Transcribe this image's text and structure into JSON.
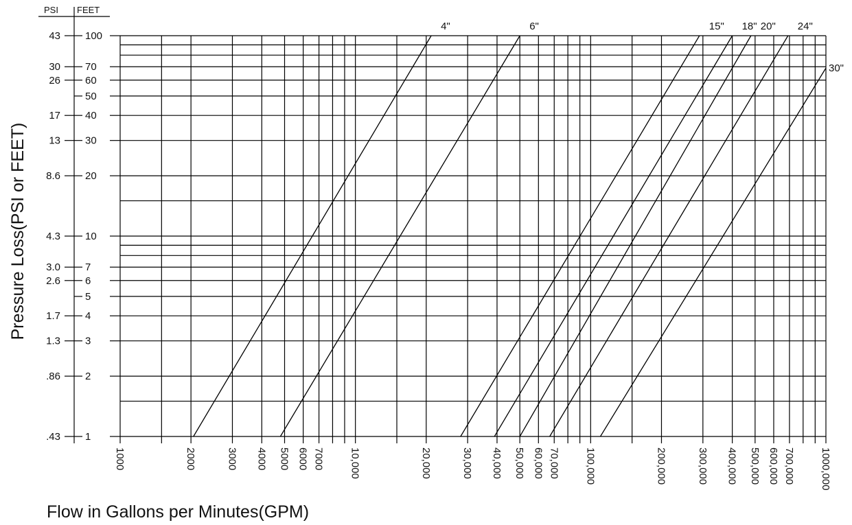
{
  "chart_data": {
    "type": "line",
    "title": "",
    "xlabel": "Flow in Gallons per Minutes(GPM)",
    "ylabel": "Pressure Loss(PSI or FEET)",
    "x_scale": "log",
    "y_scale": "log",
    "xlim": [
      1000,
      1000000
    ],
    "ylim": [
      1,
      100
    ],
    "x_ticks": [
      1000,
      2000,
      3000,
      4000,
      5000,
      6000,
      7000,
      10000,
      20000,
      30000,
      40000,
      50000,
      60000,
      70000,
      100000,
      200000,
      300000,
      400000,
      500000,
      600000,
      700000,
      1000000
    ],
    "x_tick_labels": [
      "1000",
      "2000",
      "3000",
      "4000",
      "5000",
      "6000",
      "7000",
      "10,000",
      "20,000",
      "30,000",
      "40,000",
      "50,000",
      "60,000",
      "70,000",
      "100,000",
      "200,000",
      "300,000",
      "400,000",
      "500,000",
      "600,000",
      "700,000",
      "1000,000"
    ],
    "x_grid": [
      1000,
      1500,
      2000,
      3000,
      4000,
      5000,
      6000,
      7000,
      8000,
      9000,
      10000,
      15000,
      20000,
      30000,
      40000,
      50000,
      60000,
      70000,
      80000,
      90000,
      100000,
      150000,
      200000,
      300000,
      400000,
      500000,
      600000,
      700000,
      800000,
      900000,
      1000000
    ],
    "y_grid": [
      1,
      1.5,
      2,
      3,
      4,
      5,
      6,
      7,
      8,
      9,
      10,
      15,
      20,
      30,
      40,
      50,
      60,
      70,
      80,
      90,
      100
    ],
    "y_axis_headers": {
      "psi": "PSI",
      "feet": "FEET"
    },
    "y_ticks_feet": [
      {
        "value": 100,
        "label": "100"
      },
      {
        "value": 70,
        "label": "70"
      },
      {
        "value": 60,
        "label": "60"
      },
      {
        "value": 50,
        "label": "50"
      },
      {
        "value": 40,
        "label": "40"
      },
      {
        "value": 30,
        "label": "30"
      },
      {
        "value": 20,
        "label": "20"
      },
      {
        "value": 10,
        "label": "10"
      },
      {
        "value": 7,
        "label": "7"
      },
      {
        "value": 6,
        "label": "6"
      },
      {
        "value": 5,
        "label": "5"
      },
      {
        "value": 4,
        "label": "4"
      },
      {
        "value": 3,
        "label": "3"
      },
      {
        "value": 2,
        "label": "2"
      },
      {
        "value": 1,
        "label": "1"
      }
    ],
    "y_ticks_psi": [
      {
        "value": 100,
        "label": "43"
      },
      {
        "value": 70,
        "label": "30"
      },
      {
        "value": 60,
        "label": "26"
      },
      {
        "value": 40,
        "label": "17"
      },
      {
        "value": 30,
        "label": "13"
      },
      {
        "value": 20,
        "label": "8.6"
      },
      {
        "value": 10,
        "label": "4.3"
      },
      {
        "value": 7,
        "label": "3.0"
      },
      {
        "value": 6,
        "label": "2.6"
      },
      {
        "value": 4,
        "label": "1.7"
      },
      {
        "value": 3,
        "label": "1.3"
      },
      {
        "value": 2,
        "label": ".86"
      },
      {
        "value": 1,
        "label": ".43"
      }
    ],
    "series": [
      {
        "name": "4\"",
        "points": [
          [
            2050,
            1
          ],
          [
            21000,
            100
          ]
        ]
      },
      {
        "name": "6\"",
        "points": [
          [
            4800,
            1
          ],
          [
            50000,
            100
          ]
        ]
      },
      {
        "name": "15\"",
        "points": [
          [
            28000,
            1
          ],
          [
            290000,
            100
          ]
        ]
      },
      {
        "name": "18\"",
        "points": [
          [
            39000,
            1
          ],
          [
            400000,
            100
          ]
        ]
      },
      {
        "name": "20\"",
        "points": [
          [
            50000,
            1
          ],
          [
            480000,
            100
          ]
        ]
      },
      {
        "name": "24\"",
        "points": [
          [
            67000,
            1
          ],
          [
            690000,
            100
          ]
        ]
      },
      {
        "name": "30\"",
        "points": [
          [
            110000,
            1
          ],
          [
            1000000,
            69
          ]
        ]
      }
    ]
  }
}
